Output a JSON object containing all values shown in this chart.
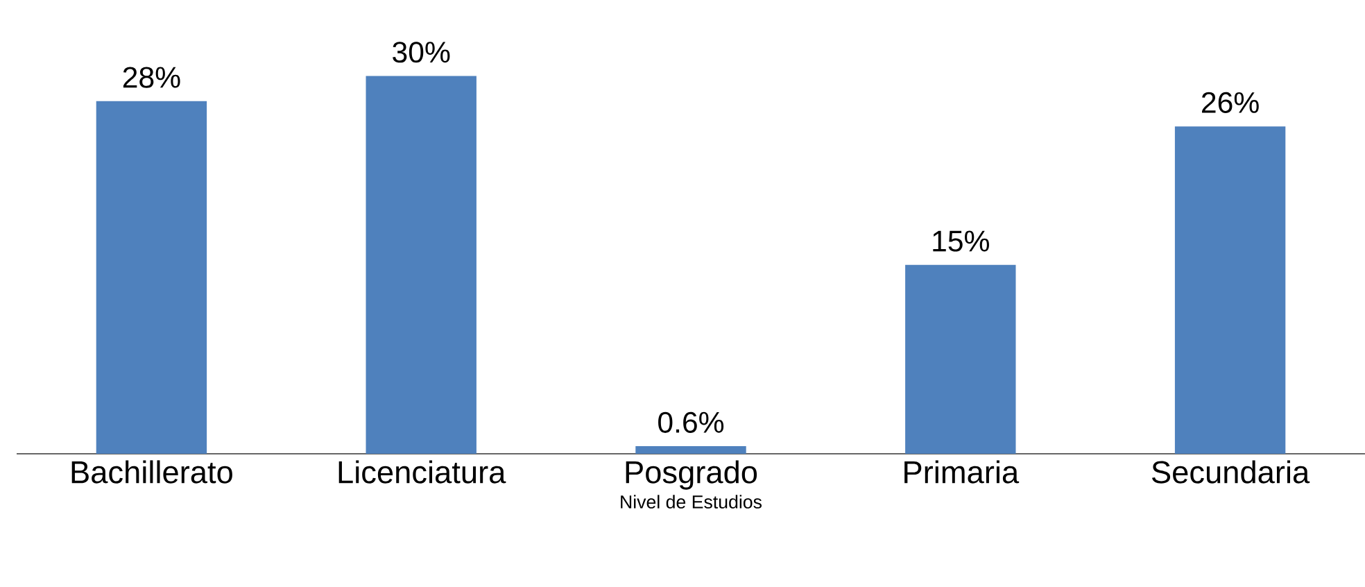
{
  "chart_data": {
    "type": "bar",
    "xlabel": "Nivel de Estudios",
    "categories": [
      "Bachillerato",
      "Licenciatura",
      "Posgrado",
      "Primaria",
      "Secundaria"
    ],
    "values": [
      28,
      30,
      0.6,
      15,
      26
    ],
    "value_labels": [
      "28%",
      "30%",
      "0.6%",
      "15%",
      "26%"
    ],
    "color": "#4f81bd"
  }
}
